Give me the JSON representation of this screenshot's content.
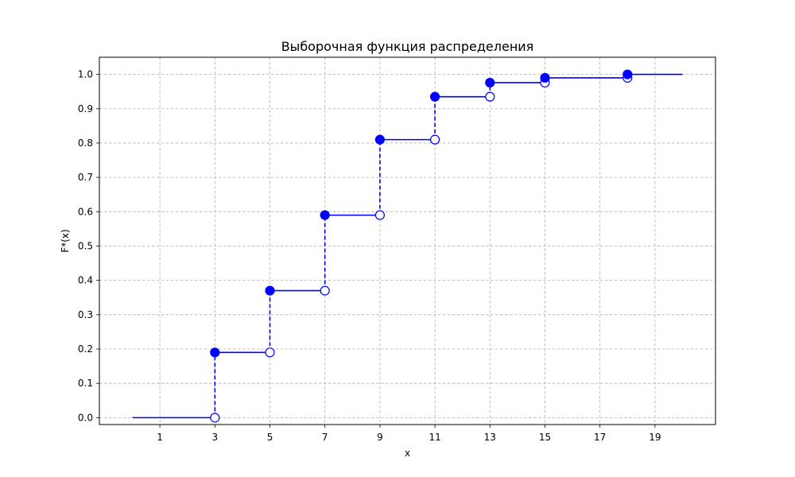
{
  "chart_data": {
    "type": "line",
    "step": "post",
    "title": "Выборочная функция распределения",
    "xlabel": "x",
    "ylabel": "F*(x)",
    "xlim": [
      -1.2,
      21.2
    ],
    "ylim": [
      -0.02,
      1.05
    ],
    "xticks": [
      1,
      3,
      5,
      7,
      9,
      11,
      13,
      15,
      17,
      19
    ],
    "yticks": [
      0.0,
      0.1,
      0.2,
      0.3,
      0.4,
      0.5,
      0.6,
      0.7,
      0.8,
      0.9,
      1.0
    ],
    "ytick_labels": [
      "0.0",
      "0.1",
      "0.2",
      "0.3",
      "0.4",
      "0.5",
      "0.6",
      "0.7",
      "0.8",
      "0.9",
      "1.0"
    ],
    "grid": true,
    "series_color": "#0000ff",
    "steps": [
      {
        "x_start": 0,
        "x_end": 3,
        "y": 0.0
      },
      {
        "x_start": 3,
        "x_end": 5,
        "y": 0.19
      },
      {
        "x_start": 5,
        "x_end": 7,
        "y": 0.37
      },
      {
        "x_start": 7,
        "x_end": 9,
        "y": 0.59
      },
      {
        "x_start": 9,
        "x_end": 11,
        "y": 0.81
      },
      {
        "x_start": 11,
        "x_end": 13,
        "y": 0.935
      },
      {
        "x_start": 13,
        "x_end": 15,
        "y": 0.976
      },
      {
        "x_start": 15,
        "x_end": 18,
        "y": 0.99
      },
      {
        "x_start": 18,
        "x_end": 20,
        "y": 1.0
      }
    ],
    "jumps": [
      {
        "x": 3,
        "y_from": 0.0,
        "y_to": 0.19
      },
      {
        "x": 5,
        "y_from": 0.19,
        "y_to": 0.37
      },
      {
        "x": 7,
        "y_from": 0.37,
        "y_to": 0.59
      },
      {
        "x": 9,
        "y_from": 0.59,
        "y_to": 0.81
      },
      {
        "x": 11,
        "y_from": 0.81,
        "y_to": 0.935
      },
      {
        "x": 13,
        "y_from": 0.935,
        "y_to": 0.976
      },
      {
        "x": 15,
        "y_from": 0.976,
        "y_to": 0.99
      },
      {
        "x": 18,
        "y_from": 0.99,
        "y_to": 1.0
      }
    ]
  }
}
